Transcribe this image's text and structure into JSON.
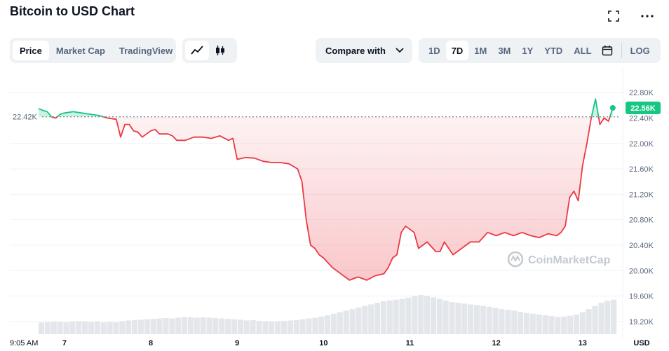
{
  "header": {
    "title": "Bitcoin to USD Chart"
  },
  "tabs": [
    {
      "label": "Price",
      "active": true
    },
    {
      "label": "Market Cap",
      "active": false
    },
    {
      "label": "TradingView",
      "active": false
    }
  ],
  "chart_types": [
    {
      "icon": "line-chart-icon",
      "active": true
    },
    {
      "icon": "candlestick-icon",
      "active": false
    }
  ],
  "compare": {
    "label": "Compare with"
  },
  "ranges": [
    {
      "label": "1D",
      "active": false
    },
    {
      "label": "7D",
      "active": true
    },
    {
      "label": "1M",
      "active": false
    },
    {
      "label": "3M",
      "active": false
    },
    {
      "label": "1Y",
      "active": false
    },
    {
      "label": "YTD",
      "active": false
    },
    {
      "label": "ALL",
      "active": false
    }
  ],
  "log_label": "LOG",
  "colors": {
    "up": "#16c784",
    "down": "#ea3943",
    "text": "#0d1421",
    "muted": "#58667e"
  },
  "chart_data": {
    "type": "line",
    "title": "",
    "xlabel": "",
    "ylabel": "USD",
    "reference_price": 22.42,
    "reference_label": "22.42K",
    "current_price": 22.56,
    "current_label": "22.56K",
    "ylim": [
      19.0,
      23.1
    ],
    "yticks": [
      19.2,
      19.6,
      20.0,
      20.4,
      20.8,
      21.2,
      21.6,
      22.0,
      22.4,
      22.8
    ],
    "ytick_labels": [
      "19.20K",
      "19.60K",
      "20.00K",
      "20.40K",
      "20.80K",
      "21.20K",
      "21.60K",
      "22.00K",
      "22.40K",
      "22.80K"
    ],
    "xlim": [
      0,
      6.7
    ],
    "xticks": [
      0.3,
      1.3,
      2.3,
      3.3,
      4.3,
      5.3,
      6.3
    ],
    "xtick_labels": [
      "7",
      "8",
      "9",
      "10",
      "11",
      "12",
      "13"
    ],
    "x_start_label": "9:05 AM",
    "x_unit_label": "USD",
    "watermark": "CoinMarketCap",
    "price": {
      "x": [
        0,
        0.05,
        0.1,
        0.15,
        0.2,
        0.25,
        0.3,
        0.4,
        0.5,
        0.6,
        0.7,
        0.8,
        0.9,
        0.95,
        1.0,
        1.05,
        1.1,
        1.15,
        1.2,
        1.3,
        1.35,
        1.4,
        1.5,
        1.55,
        1.6,
        1.7,
        1.8,
        1.9,
        2.0,
        2.1,
        2.2,
        2.25,
        2.3,
        2.4,
        2.5,
        2.6,
        2.7,
        2.8,
        2.9,
        3.0,
        3.05,
        3.1,
        3.15,
        3.2,
        3.25,
        3.3,
        3.4,
        3.5,
        3.6,
        3.7,
        3.8,
        3.9,
        4.0,
        4.05,
        4.1,
        4.15,
        4.2,
        4.25,
        4.3,
        4.35,
        4.4,
        4.5,
        4.6,
        4.65,
        4.7,
        4.8,
        4.9,
        5.0,
        5.1,
        5.2,
        5.3,
        5.4,
        5.5,
        5.6,
        5.7,
        5.8,
        5.9,
        6.0,
        6.05,
        6.1,
        6.15,
        6.2,
        6.25,
        6.3,
        6.35,
        6.4,
        6.45,
        6.5,
        6.55,
        6.6,
        6.65
      ],
      "y": [
        22.55,
        22.52,
        22.5,
        22.42,
        22.4,
        22.46,
        22.48,
        22.5,
        22.48,
        22.46,
        22.44,
        22.4,
        22.38,
        22.1,
        22.3,
        22.3,
        22.2,
        22.18,
        22.1,
        22.2,
        22.22,
        22.15,
        22.15,
        22.12,
        22.05,
        22.05,
        22.1,
        22.1,
        22.08,
        22.12,
        22.05,
        22.08,
        21.75,
        21.78,
        21.77,
        21.72,
        21.7,
        21.7,
        21.68,
        21.6,
        21.4,
        20.8,
        20.4,
        20.35,
        20.25,
        20.2,
        20.05,
        19.95,
        19.85,
        19.9,
        19.85,
        19.92,
        19.95,
        20.05,
        20.2,
        20.25,
        20.6,
        20.7,
        20.65,
        20.6,
        20.35,
        20.45,
        20.3,
        20.3,
        20.45,
        20.25,
        20.35,
        20.45,
        20.45,
        20.6,
        20.55,
        20.6,
        20.55,
        20.6,
        20.55,
        20.52,
        20.58,
        20.55,
        20.6,
        20.7,
        21.15,
        21.25,
        21.1,
        21.65,
        22.0,
        22.4,
        22.7,
        22.3,
        22.4,
        22.35,
        22.56
      ]
    },
    "volume": {
      "values": [
        0.3,
        0.31,
        0.32,
        0.31,
        0.3,
        0.32,
        0.33,
        0.32,
        0.31,
        0.32,
        0.3,
        0.31,
        0.3,
        0.33,
        0.35,
        0.36,
        0.37,
        0.38,
        0.39,
        0.4,
        0.41,
        0.4,
        0.42,
        0.44,
        0.43,
        0.42,
        0.43,
        0.42,
        0.41,
        0.4,
        0.39,
        0.38,
        0.37,
        0.35,
        0.36,
        0.34,
        0.33,
        0.32,
        0.33,
        0.34,
        0.35,
        0.36,
        0.38,
        0.4,
        0.42,
        0.45,
        0.48,
        0.52,
        0.56,
        0.6,
        0.64,
        0.68,
        0.72,
        0.76,
        0.8,
        0.84,
        0.86,
        0.88,
        0.9,
        0.93,
        0.97,
        1.0,
        0.98,
        0.94,
        0.9,
        0.86,
        0.82,
        0.8,
        0.78,
        0.76,
        0.74,
        0.72,
        0.7,
        0.67,
        0.64,
        0.62,
        0.6,
        0.57,
        0.54,
        0.52,
        0.5,
        0.48,
        0.46,
        0.44,
        0.45,
        0.47,
        0.5,
        0.56,
        0.64,
        0.72,
        0.8,
        0.85,
        0.88
      ]
    }
  }
}
